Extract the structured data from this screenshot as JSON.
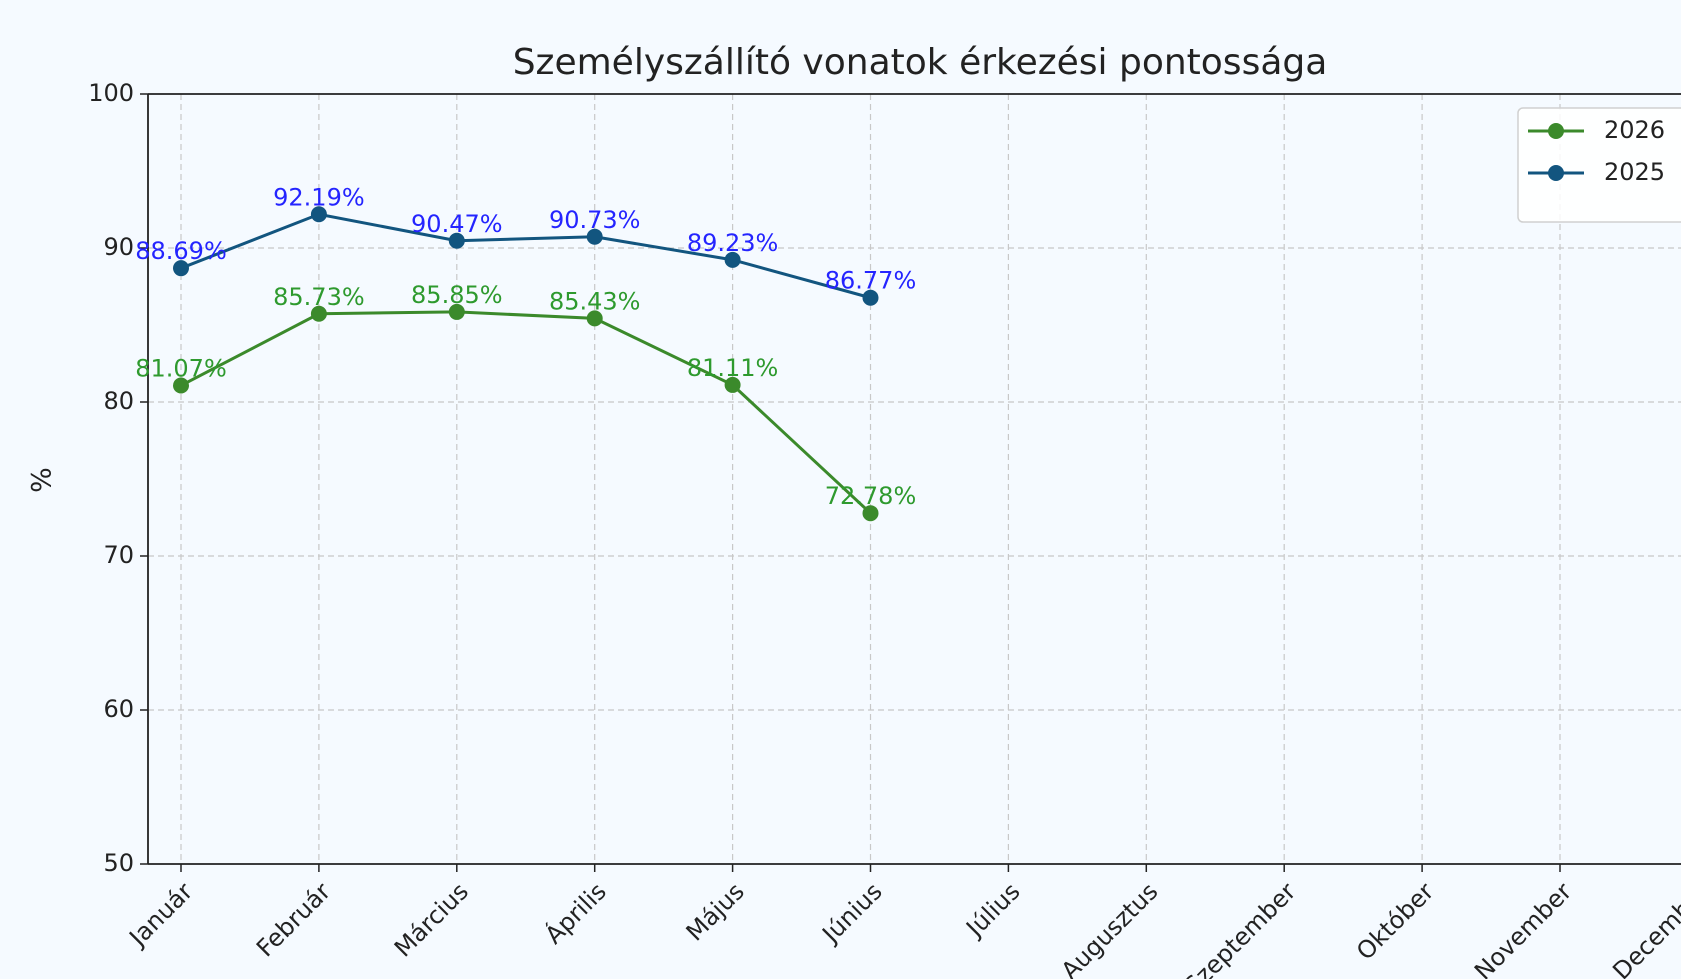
{
  "chart_data": {
    "type": "line",
    "title": "Személyszállító vonatok érkezési pontossága",
    "y_label": "%",
    "categories": [
      "Január",
      "Február",
      "Március",
      "Április",
      "Május",
      "Június",
      "Július",
      "Augusztus",
      "Szeptember",
      "Október",
      "November",
      "December"
    ],
    "series": [
      {
        "name": "2026",
        "color": "#3b8a2b",
        "label_color": "#2e9a2e",
        "values": [
          81.07,
          85.73,
          85.85,
          85.43,
          81.11,
          72.78,
          null,
          null,
          null,
          null,
          null,
          null
        ],
        "value_labels": [
          "81.07%",
          "85.73%",
          "85.85%",
          "85.43%",
          "81.11%",
          "72.78%",
          null,
          null,
          null,
          null,
          null,
          null
        ]
      },
      {
        "name": "2025",
        "color": "#12557f",
        "label_color": "#2424ff",
        "values": [
          88.69,
          92.19,
          90.47,
          90.73,
          89.23,
          86.77,
          null,
          null,
          null,
          null,
          null,
          null
        ],
        "value_labels": [
          "88.69%",
          "92.19%",
          "90.47%",
          "90.73%",
          "89.23%",
          "86.77%",
          null,
          null,
          null,
          null,
          null,
          null
        ]
      }
    ],
    "ylim": [
      50,
      100
    ],
    "yticks": [
      50,
      60,
      70,
      80,
      90,
      100
    ],
    "grid": true,
    "legend": "upper right"
  }
}
